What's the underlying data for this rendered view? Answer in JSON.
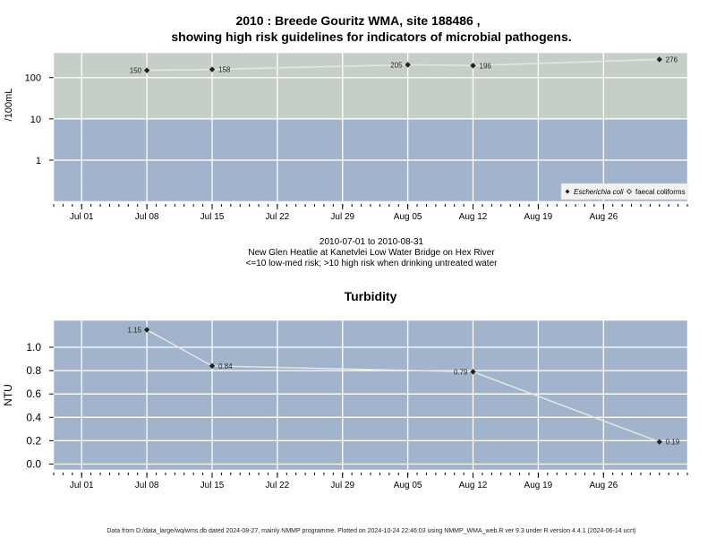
{
  "page": {
    "title_line1": "2010 : Breede Gouritz WMA, site 188486 ,",
    "title_line2": "showing high risk guidelines for indicators of microbial pathogens.",
    "date_range": "2010-07-01 to 2010-08-31",
    "site_description": "New Glen Heatlie at Kanetvlei Low Water Bridge on Hex River",
    "risk_note": "<=10 low-med risk; >10 high risk when drinking untreated water",
    "footer": "Data from D:/data_large/wq/wms.db dated 2024-08-27, mainly NMMP programme. Plotted on 2024-10-24 22:46:03 using NMMP_WMA_web.R ver 9.3 under R version 4.4.1 (2024-06-14 ucrt)"
  },
  "colors": {
    "high_risk_band": "#c5cfc5",
    "low_risk_band": "#a2b4cc",
    "panel_bg": "#a2b4cc",
    "grid": "#ffffff",
    "line": "#e6e6e6",
    "point": "#222222"
  },
  "chart_data": [
    {
      "type": "scatter",
      "title": "",
      "ylabel": "/100mL",
      "y_scale": "log",
      "yticks": [
        "1",
        "10",
        "100"
      ],
      "ylim": [
        0.1,
        400
      ],
      "xlim": [
        "2010-06-28",
        "2010-09-04"
      ],
      "xticks": [
        "Jul 01",
        "Jul 08",
        "Jul 15",
        "Jul 22",
        "Jul 29",
        "Aug 05",
        "Aug 12",
        "Aug 19",
        "Aug 26"
      ],
      "xtick_dates": [
        "2010-07-01",
        "2010-07-08",
        "2010-07-15",
        "2010-07-22",
        "2010-07-29",
        "2010-08-05",
        "2010-08-12",
        "2010-08-19",
        "2010-08-26"
      ],
      "threshold": 10,
      "grid": true,
      "legend_position": "bottom-right",
      "series": [
        {
          "name": "Escherichia coli",
          "marker": "filled-diamond",
          "x": [
            "2010-07-08",
            "2010-07-15",
            "2010-08-05",
            "2010-08-12",
            "2010-09-01"
          ],
          "y": [
            150,
            158,
            205,
            196,
            276
          ],
          "labels": [
            "150",
            "158",
            "205",
            "196",
            "276"
          ],
          "label_side": [
            "left",
            "right",
            "left",
            "right",
            "right"
          ]
        },
        {
          "name": "faecal coliforms",
          "marker": "open-diamond",
          "x": [],
          "y": []
        }
      ]
    },
    {
      "type": "line",
      "title": "Turbidity",
      "ylabel": "NTU",
      "ylim": [
        -0.05,
        1.23
      ],
      "yticks": [
        "0.0",
        "0.2",
        "0.4",
        "0.6",
        "0.8",
        "1.0"
      ],
      "ytick_values": [
        0,
        0.2,
        0.4,
        0.6,
        0.8,
        1.0
      ],
      "xlim": [
        "2010-06-28",
        "2010-09-04"
      ],
      "xticks": [
        "Jul 01",
        "Jul 08",
        "Jul 15",
        "Jul 22",
        "Jul 29",
        "Aug 05",
        "Aug 12",
        "Aug 19",
        "Aug 26"
      ],
      "xtick_dates": [
        "2010-07-01",
        "2010-07-08",
        "2010-07-15",
        "2010-07-22",
        "2010-07-29",
        "2010-08-05",
        "2010-08-12",
        "2010-08-19",
        "2010-08-26"
      ],
      "grid": true,
      "series": [
        {
          "name": "",
          "x": [
            "2010-07-08",
            "2010-07-15",
            "2010-08-12",
            "2010-09-01"
          ],
          "y": [
            1.15,
            0.84,
            0.79,
            0.19
          ],
          "labels": [
            "1.15",
            "0.84",
            "0.79",
            "0.19"
          ],
          "label_side": [
            "left",
            "right",
            "left",
            "right"
          ]
        }
      ]
    }
  ]
}
